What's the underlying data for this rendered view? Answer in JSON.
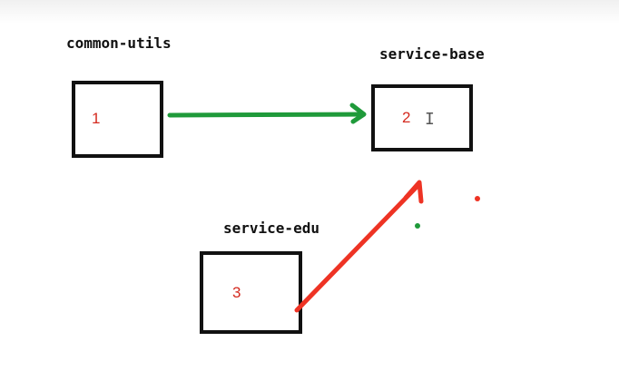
{
  "nodes": {
    "common_utils": {
      "label": "common-utils",
      "number": "1"
    },
    "service_base": {
      "label": "service-base",
      "number": "2"
    },
    "service_edu": {
      "label": "service-edu",
      "number": "3"
    }
  },
  "cursor_icon": "text-cursor-icon",
  "colors": {
    "box_border": "#111111",
    "number_text": "#d42a1f",
    "arrow_green": "#1f9a3a",
    "arrow_red": "#ee3324"
  }
}
